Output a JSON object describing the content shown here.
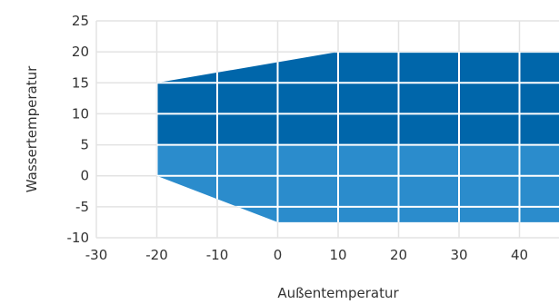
{
  "chart_data": {
    "type": "area",
    "title": "",
    "xlabel": "Außentemperatur",
    "ylabel": "Wassertemperatur",
    "xlim": [
      -30,
      47
    ],
    "ylim": [
      -10,
      25
    ],
    "x_ticks": [
      -30,
      -20,
      -10,
      0,
      10,
      20,
      30,
      40
    ],
    "y_ticks": [
      25,
      20,
      15,
      10,
      5,
      0,
      -5,
      -10
    ],
    "grid": true,
    "legend": "none",
    "regions": [
      {
        "color": "#2b8ccc",
        "points": [
          [
            -20,
            0
          ],
          [
            0,
            -7.5
          ],
          [
            47,
            -7.5
          ],
          [
            47,
            5
          ],
          [
            -20,
            5
          ]
        ]
      },
      {
        "color": "#0066aa",
        "points": [
          [
            -20,
            5
          ],
          [
            -20,
            15
          ],
          [
            10,
            20
          ],
          [
            47,
            20
          ],
          [
            47,
            5
          ]
        ]
      }
    ]
  }
}
